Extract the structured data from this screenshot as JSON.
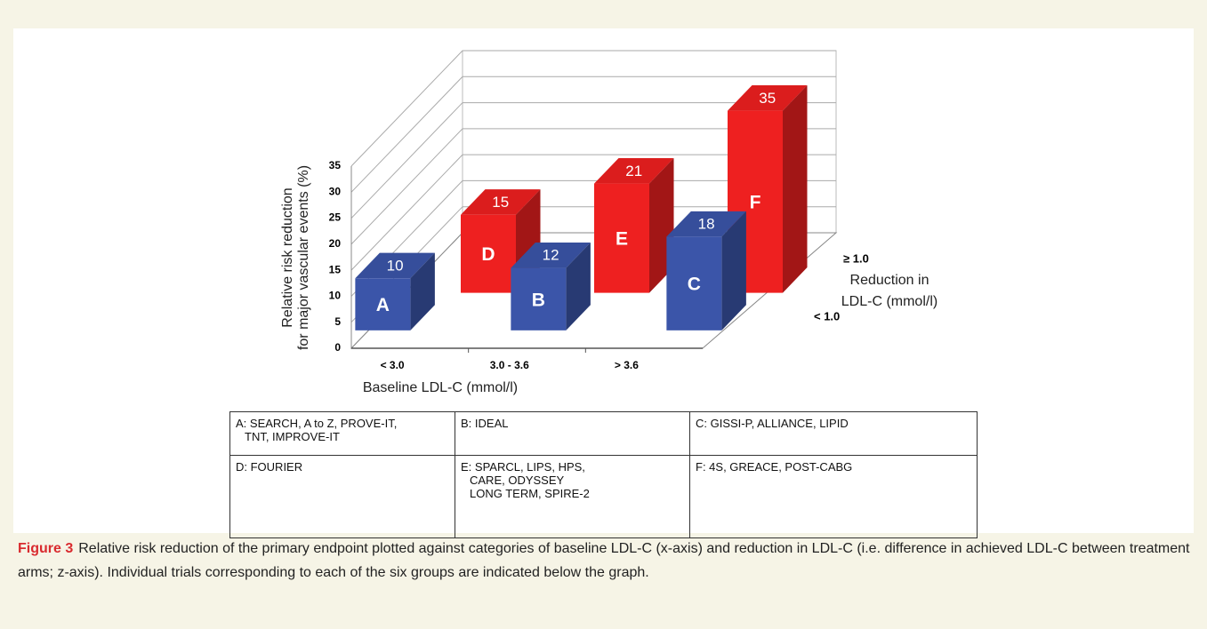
{
  "chart_data": {
    "type": "bar3d",
    "ylabel": [
      "Relative risk reduction",
      "for major vascular events (%)"
    ],
    "xlabel": "Baseline LDL-C (mmol/l)",
    "zlabel": [
      "Reduction in",
      "LDL-C (mmol/l)"
    ],
    "categories": [
      "< 3.0",
      "3.0 - 3.6",
      "> 3.6"
    ],
    "series": [
      {
        "name": "< 1.0",
        "color": "#3b55a9",
        "values": [
          10,
          12,
          18
        ],
        "bar_labels": [
          "A",
          "B",
          "C"
        ]
      },
      {
        "name": "≥ 1.0",
        "color": "#ee2020",
        "values": [
          15,
          21,
          35
        ],
        "bar_labels": [
          "D",
          "E",
          "F"
        ]
      }
    ],
    "ylim": [
      0,
      35
    ],
    "yticks": [
      0,
      5,
      10,
      15,
      20,
      25,
      30,
      35
    ],
    "grid": true
  },
  "table": {
    "rows": [
      [
        {
          "key": "A",
          "lines": [
            ": SEARCH, A to Z, PROVE-IT,",
            "TNT,  IMPROVE-IT"
          ]
        },
        {
          "key": "B",
          "lines": [
            ": IDEAL"
          ]
        },
        {
          "key": "C",
          "lines": [
            ": GISSI-P, ALLIANCE, LIPID"
          ]
        }
      ],
      [
        {
          "key": "D",
          "lines": [
            ": FOURIER"
          ]
        },
        {
          "key": "E",
          "lines": [
            ": SPARCL, LIPS, HPS,",
            "CARE, ODYSSEY",
            "LONG TERM, SPIRE-2"
          ]
        },
        {
          "key": "F",
          "lines": [
            ": 4S, GREACE, POST-CABG"
          ]
        }
      ]
    ]
  },
  "caption": {
    "label": "Figure 3",
    "text": "Relative risk reduction of the primary endpoint plotted against categories of baseline LDL-C (x-axis) and reduction in LDL-C (i.e. difference in achieved LDL-C between treatment arms; z-axis). Individual trials corresponding to each of the six groups are indicated below the graph."
  }
}
